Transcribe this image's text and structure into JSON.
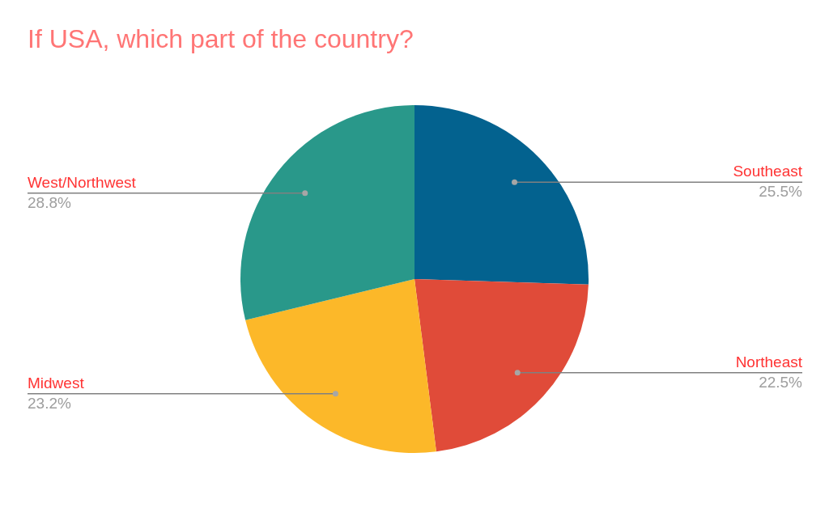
{
  "chart_data": {
    "type": "pie",
    "title": "If USA, which part of the country?",
    "categories": [
      "Southeast",
      "Northeast",
      "Midwest",
      "West/Northwest"
    ],
    "values": [
      25.5,
      22.5,
      23.2,
      28.8
    ],
    "colors": [
      "#03628f",
      "#e04b39",
      "#fcb829",
      "#29988a"
    ],
    "value_labels": [
      "25.5%",
      "22.5%",
      "23.2%",
      "28.8%"
    ]
  }
}
